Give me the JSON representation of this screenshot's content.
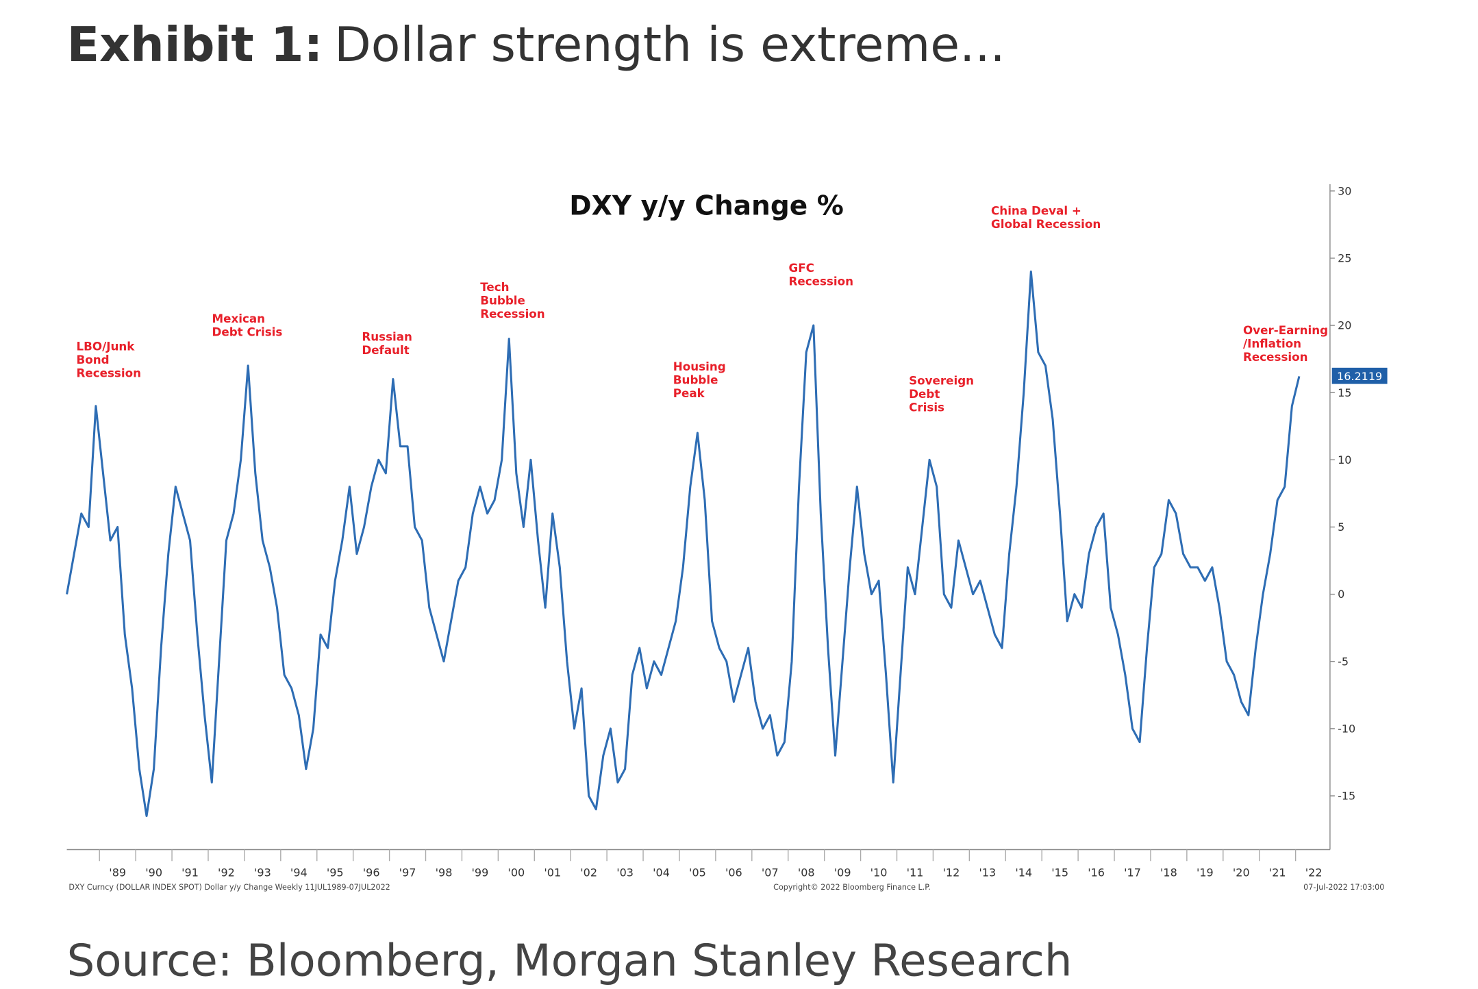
{
  "exhibit_label": "Exhibit 1:",
  "exhibit_title": "Dollar strength is extreme...",
  "source": "Source: Bloomberg, Morgan Stanley Research",
  "chart_data": {
    "type": "line",
    "title": "DXY y/y Change %",
    "footnote": "DXY Curncy (DOLLAR INDEX SPOT) Dollar y/y Change  Weekly 11JUL1989-07JUL2022",
    "copyright": "Copyright© 2022 Bloomberg Finance L.P.",
    "timestamp": "07-Jul-2022 17:03:00",
    "x": [
      1988.6,
      1988.8,
      1989.0,
      1989.2,
      1989.4,
      1989.6,
      1989.8,
      1990.0,
      1990.2,
      1990.4,
      1990.6,
      1990.8,
      1991.0,
      1991.2,
      1991.4,
      1991.6,
      1991.8,
      1992.0,
      1992.2,
      1992.4,
      1992.6,
      1992.8,
      1993.0,
      1993.2,
      1993.4,
      1993.6,
      1993.8,
      1994.0,
      1994.2,
      1994.4,
      1994.6,
      1994.8,
      1995.0,
      1995.2,
      1995.4,
      1995.6,
      1995.8,
      1996.0,
      1996.2,
      1996.4,
      1996.6,
      1996.8,
      1997.0,
      1997.2,
      1997.4,
      1997.6,
      1997.8,
      1998.0,
      1998.2,
      1998.4,
      1998.6,
      1998.8,
      1999.0,
      1999.2,
      1999.4,
      1999.6,
      1999.8,
      2000.0,
      2000.2,
      2000.4,
      2000.6,
      2000.8,
      2001.0,
      2001.2,
      2001.4,
      2001.6,
      2001.8,
      2002.0,
      2002.2,
      2002.4,
      2002.6,
      2002.8,
      2003.0,
      2003.2,
      2003.4,
      2003.6,
      2003.8,
      2004.0,
      2004.2,
      2004.4,
      2004.6,
      2004.8,
      2005.0,
      2005.2,
      2005.4,
      2005.6,
      2005.8,
      2006.0,
      2006.2,
      2006.4,
      2006.6,
      2006.8,
      2007.0,
      2007.2,
      2007.4,
      2007.6,
      2007.8,
      2008.0,
      2008.2,
      2008.4,
      2008.6,
      2008.8,
      2009.0,
      2009.2,
      2009.4,
      2009.6,
      2009.8,
      2010.0,
      2010.2,
      2010.4,
      2010.6,
      2010.8,
      2011.0,
      2011.2,
      2011.4,
      2011.6,
      2011.8,
      2012.0,
      2012.2,
      2012.4,
      2012.6,
      2012.8,
      2013.0,
      2013.2,
      2013.4,
      2013.6,
      2013.8,
      2014.0,
      2014.2,
      2014.4,
      2014.6,
      2014.8,
      2015.0,
      2015.2,
      2015.4,
      2015.6,
      2015.8,
      2016.0,
      2016.2,
      2016.4,
      2016.6,
      2016.8,
      2017.0,
      2017.2,
      2017.4,
      2017.6,
      2017.8,
      2018.0,
      2018.2,
      2018.4,
      2018.6,
      2018.8,
      2019.0,
      2019.2,
      2019.4,
      2019.6,
      2019.8,
      2020.0,
      2020.2,
      2020.4,
      2020.6,
      2020.8,
      2021.0,
      2021.2,
      2021.4,
      2021.6,
      2021.8,
      2022.0,
      2022.2,
      2022.4,
      2022.6
    ],
    "series": [
      {
        "name": "DXY y/y Change",
        "color": "#2e6db4",
        "values": [
          0,
          3,
          6,
          5,
          14,
          9,
          4,
          5,
          -3,
          -7,
          -13,
          -16.5,
          -13,
          -4,
          3,
          8,
          6,
          4,
          -3,
          -9,
          -14,
          -5,
          4,
          6,
          10,
          17,
          9,
          4,
          2,
          -1,
          -6,
          -7,
          -9,
          -13,
          -10,
          -3,
          -4,
          1,
          4,
          8,
          3,
          5,
          8,
          10,
          9,
          16,
          11,
          11,
          5,
          4,
          -1,
          -3,
          -5,
          -2,
          1,
          2,
          6,
          8,
          6,
          7,
          10,
          19,
          9,
          5,
          10,
          4,
          -1,
          6,
          2,
          -5,
          -10,
          -7,
          -15,
          -16,
          -12,
          -10,
          -14,
          -13,
          -6,
          -4,
          -7,
          -5,
          -6,
          -4,
          -2,
          2,
          8,
          12,
          7,
          -2,
          -4,
          -5,
          -8,
          -6,
          -4,
          -8,
          -10,
          -9,
          -12,
          -11,
          -5,
          8,
          18,
          20,
          6,
          -4,
          -12,
          -5,
          2,
          8,
          3,
          0,
          1,
          -6,
          -14,
          -6,
          2,
          0,
          5,
          10,
          8,
          0,
          -1,
          4,
          2,
          0,
          1,
          -1,
          -3,
          -4,
          3,
          8,
          15,
          24,
          18,
          17,
          13,
          6,
          -2,
          0,
          -1,
          3,
          5,
          6,
          -1,
          -3,
          -6,
          -10,
          -11,
          -4,
          2,
          3,
          7,
          6,
          3,
          2,
          2,
          1,
          2,
          -1,
          -5,
          -6,
          -8,
          -9,
          -4,
          0,
          3,
          7,
          8,
          14,
          16.2119
        ]
      }
    ],
    "xlim": [
      1988.6,
      2023.45
    ],
    "xticks": [
      {
        "value": 1989.5,
        "label": "'89"
      },
      {
        "value": 1990.5,
        "label": "'90"
      },
      {
        "value": 1991.5,
        "label": "'91"
      },
      {
        "value": 1992.5,
        "label": "'92"
      },
      {
        "value": 1993.5,
        "label": "'93"
      },
      {
        "value": 1994.5,
        "label": "'94"
      },
      {
        "value": 1995.5,
        "label": "'95"
      },
      {
        "value": 1996.5,
        "label": "'96"
      },
      {
        "value": 1997.5,
        "label": "'97"
      },
      {
        "value": 1998.5,
        "label": "'98"
      },
      {
        "value": 1999.5,
        "label": "'99"
      },
      {
        "value": 2000.5,
        "label": "'00"
      },
      {
        "value": 2001.5,
        "label": "'01"
      },
      {
        "value": 2002.5,
        "label": "'02"
      },
      {
        "value": 2003.5,
        "label": "'03"
      },
      {
        "value": 2004.5,
        "label": "'04"
      },
      {
        "value": 2005.5,
        "label": "'05"
      },
      {
        "value": 2006.5,
        "label": "'06"
      },
      {
        "value": 2007.5,
        "label": "'07"
      },
      {
        "value": 2008.5,
        "label": "'08"
      },
      {
        "value": 2009.5,
        "label": "'09"
      },
      {
        "value": 2010.5,
        "label": "'10"
      },
      {
        "value": 2011.5,
        "label": "'11"
      },
      {
        "value": 2012.5,
        "label": "'12"
      },
      {
        "value": 2013.5,
        "label": "'13"
      },
      {
        "value": 2014.5,
        "label": "'14"
      },
      {
        "value": 2015.5,
        "label": "'15"
      },
      {
        "value": 2016.5,
        "label": "'16"
      },
      {
        "value": 2017.5,
        "label": "'17"
      },
      {
        "value": 2018.5,
        "label": "'18"
      },
      {
        "value": 2019.5,
        "label": "'19"
      },
      {
        "value": 2020.5,
        "label": "'20"
      },
      {
        "value": 2021.5,
        "label": "'21"
      },
      {
        "value": 2022.5,
        "label": "'22"
      }
    ],
    "ylim": [
      -19,
      30.5
    ],
    "yticks": [
      30,
      25,
      20,
      15,
      10,
      5,
      0,
      -5,
      -10,
      -15
    ],
    "annotations": [
      {
        "lines": [
          "LBO/Junk",
          "Bond",
          "Recession"
        ]
      },
      {
        "lines": [
          "Mexican",
          "Debt Crisis"
        ]
      },
      {
        "lines": [
          "Russian",
          "Default"
        ]
      },
      {
        "lines": [
          "Tech",
          "Bubble",
          "Recession"
        ]
      },
      {
        "lines": [
          "Housing",
          "Bubble",
          "Peak"
        ]
      },
      {
        "lines": [
          "GFC",
          "Recession"
        ]
      },
      {
        "lines": [
          "Sovereign",
          "Debt",
          "Crisis"
        ]
      },
      {
        "lines": [
          "China Deval +",
          "Global Recession"
        ]
      },
      {
        "lines": [
          "Over-Earning",
          "/Inflation",
          "Recession"
        ]
      }
    ]
  }
}
